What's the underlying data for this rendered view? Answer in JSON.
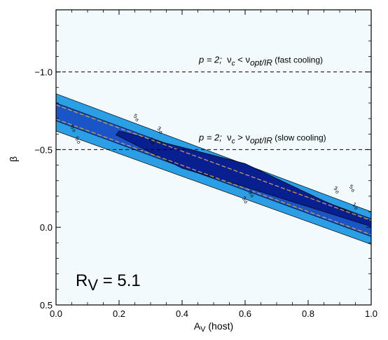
{
  "chart_data": {
    "type": "contour",
    "xlabel_main": "A",
    "xlabel_sub": "V",
    "xlabel_rest": " (host)",
    "ylabel": "β",
    "xlim": [
      0.0,
      1.0
    ],
    "ylim": [
      0.5,
      -1.4
    ],
    "x_ticks": [
      "0.0",
      "0.2",
      "0.4",
      "0.6",
      "0.8",
      "1.0"
    ],
    "y_ticks": [
      "−1.0",
      "−0.5",
      "0.0",
      "0.5"
    ],
    "y_tick_values": [
      -1.0,
      -0.5,
      0.0,
      0.5
    ],
    "x_tick_values": [
      0.0,
      0.2,
      0.4,
      0.6,
      0.8,
      1.0
    ],
    "background_color": "#f2fafd",
    "colors": {
      "sigma5": "#2b9fe6",
      "sigma3": "#1a55c8",
      "sigma1": "#08208f",
      "best_fit_line": "#d8a050"
    },
    "contours": [
      {
        "level": "5σ",
        "upper": [
          [
            0.0,
            -0.86
          ],
          [
            1.0,
            -0.1
          ]
        ],
        "lower": [
          [
            0.0,
            -0.62
          ],
          [
            1.0,
            0.11
          ]
        ]
      },
      {
        "level": "3σ",
        "upper": [
          [
            0.0,
            -0.8
          ],
          [
            1.0,
            -0.055
          ]
        ],
        "lower": [
          [
            0.0,
            -0.685
          ],
          [
            1.0,
            0.06
          ]
        ]
      },
      {
        "level": "1σ",
        "polygon": [
          [
            0.2,
            -0.62
          ],
          [
            0.6,
            -0.41
          ],
          [
            0.85,
            -0.17
          ],
          [
            1.0,
            -0.04
          ],
          [
            1.0,
            -0.005
          ],
          [
            0.6,
            -0.26
          ],
          [
            0.4,
            -0.38
          ],
          [
            0.19,
            -0.595
          ]
        ]
      }
    ],
    "contour_labels": [
      {
        "text": "5",
        "sub": "σ",
        "x": 0.245,
        "y": -0.71
      },
      {
        "text": "3",
        "sub": "σ",
        "x": 0.32,
        "y": -0.63
      },
      {
        "text": "1",
        "sub": "σ",
        "x": 0.295,
        "y": -0.56
      },
      {
        "text": "5",
        "sub": "σ",
        "x": 0.045,
        "y": -0.64
      },
      {
        "text": "5",
        "sub": "σ",
        "x": 0.06,
        "y": -0.565
      },
      {
        "text": "3",
        "sub": "σ",
        "x": 0.61,
        "y": -0.22
      },
      {
        "text": "3",
        "sub": "σ",
        "x": 0.59,
        "y": -0.18
      },
      {
        "text": "3",
        "sub": "σ",
        "x": 0.88,
        "y": -0.245
      },
      {
        "text": "5",
        "sub": "σ",
        "x": 0.93,
        "y": -0.255
      },
      {
        "text": "1",
        "sub": "σ",
        "x": 0.94,
        "y": -0.14
      }
    ],
    "reference_lines": [
      {
        "y": -1.0,
        "label_p": "p = 2;",
        "label_nu": "ν",
        "label_c": "c",
        "label_rel": " < ν",
        "label_sub": "opt/IR",
        "label_note": " (fast cooling)"
      },
      {
        "y": -0.5,
        "label_p": "p = 2;",
        "label_nu": "ν",
        "label_c": "c",
        "label_rel": " > ν",
        "label_sub": "opt/IR",
        "label_note": " (slow cooling)"
      }
    ],
    "annotation": {
      "main": "R",
      "sub": "V",
      "rest": " = 5.1"
    }
  }
}
